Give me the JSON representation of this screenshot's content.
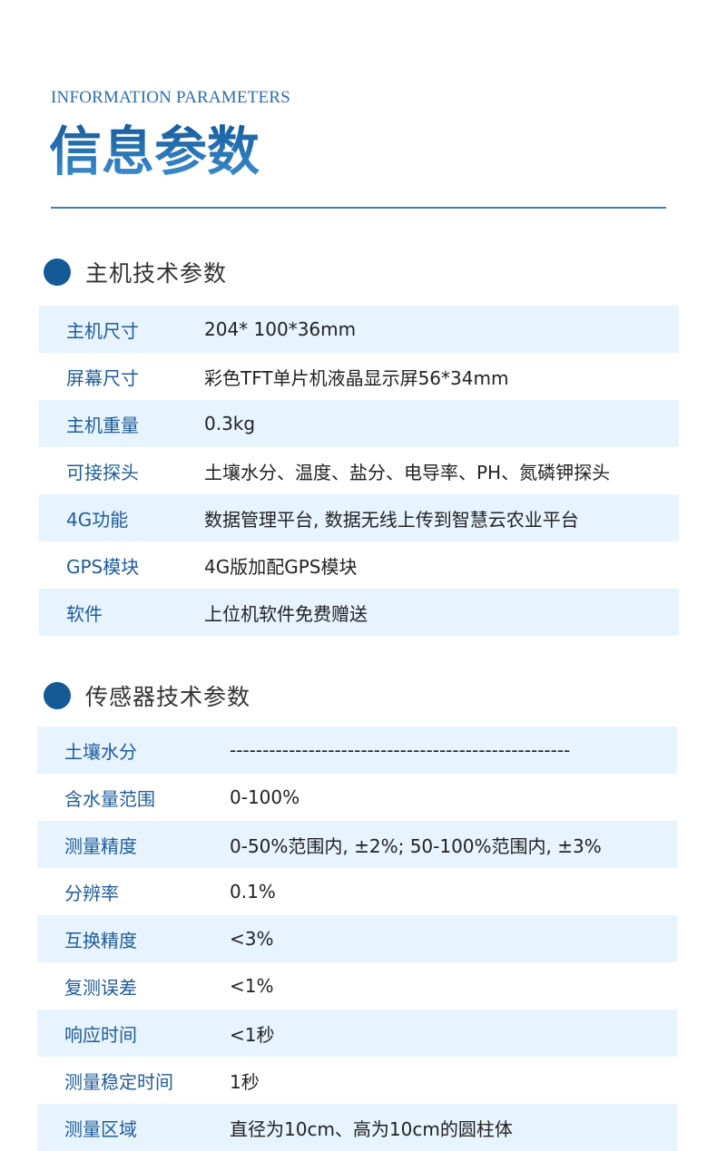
{
  "header": {
    "subtitle_en": "INFORMATION PARAMETERS",
    "title": "信息参数"
  },
  "host": {
    "heading": "主机技术参数",
    "rows": [
      {
        "label": "主机尺寸",
        "value": "204* 100*36mm"
      },
      {
        "label": "屏幕尺寸",
        "value": "彩色TFT单片机液晶显示屏56*34mm"
      },
      {
        "label": "主机重量",
        "value": "0.3kg"
      },
      {
        "label": "可接探头",
        "value": "土壤水分、温度、盐分、电导率、PH、氮磷钾探头"
      },
      {
        "label": "4G功能",
        "value": "数据管理平台, 数据无线上传到智慧云农业平台"
      },
      {
        "label": "GPS模块",
        "value": "4G版加配GPS模块"
      },
      {
        "label": "软件",
        "value": "上位机软件免费赠送"
      }
    ]
  },
  "sensor": {
    "heading": "传感器技术参数",
    "rows": [
      {
        "label": "土壤水分",
        "value": "----------------------------------------------------"
      },
      {
        "label": "含水量范围",
        "value": "0-100%"
      },
      {
        "label": "测量精度",
        "value": "0-50%范围内, ±2%; 50-100%范围内, ±3%"
      },
      {
        "label": "分辨率",
        "value": "0.1%"
      },
      {
        "label": "互换精度",
        "value": "<3%"
      },
      {
        "label": "复测误差",
        "value": "<1%"
      },
      {
        "label": "响应时间",
        "value": "<1秒"
      },
      {
        "label": "测量稳定时间",
        "value": "1秒"
      },
      {
        "label": "测量区域",
        "value": "直径为10cm、高为10cm的圆柱体"
      }
    ]
  }
}
